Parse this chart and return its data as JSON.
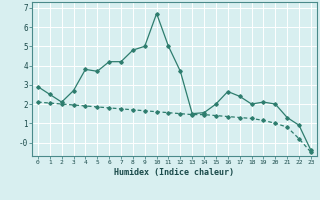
{
  "xlabel": "Humidex (Indice chaleur)",
  "x": [
    0,
    1,
    2,
    3,
    4,
    5,
    6,
    7,
    8,
    9,
    10,
    11,
    12,
    13,
    14,
    15,
    16,
    17,
    18,
    19,
    20,
    21,
    22,
    23
  ],
  "line1": [
    2.9,
    2.5,
    2.1,
    2.7,
    3.8,
    3.7,
    4.2,
    4.2,
    4.8,
    5.0,
    6.7,
    5.0,
    3.7,
    1.5,
    1.55,
    2.0,
    2.65,
    2.4,
    2.0,
    2.1,
    2.0,
    1.3,
    0.9,
    -0.4
  ],
  "line2": [
    2.1,
    2.05,
    2.0,
    1.95,
    1.9,
    1.85,
    1.8,
    1.75,
    1.7,
    1.65,
    1.6,
    1.55,
    1.5,
    1.45,
    1.45,
    1.4,
    1.35,
    1.3,
    1.25,
    1.15,
    1.0,
    0.8,
    0.2,
    -0.5
  ],
  "line_color": "#2e7d6e",
  "bg_color": "#d8eff0",
  "grid_color": "#ffffff",
  "ylim": [
    -0.7,
    7.3
  ],
  "xlim": [
    -0.5,
    23.5
  ],
  "yticks": [
    0,
    1,
    2,
    3,
    4,
    5,
    6,
    7
  ],
  "ytick_labels": [
    "-0",
    "1",
    "2",
    "3",
    "4",
    "5",
    "6",
    "7"
  ],
  "xtick_labels": [
    "0",
    "1",
    "2",
    "3",
    "4",
    "5",
    "6",
    "7",
    "8",
    "9",
    "10",
    "11",
    "12",
    "13",
    "14",
    "15",
    "16",
    "17",
    "18",
    "19",
    "20",
    "21",
    "22",
    "23"
  ]
}
